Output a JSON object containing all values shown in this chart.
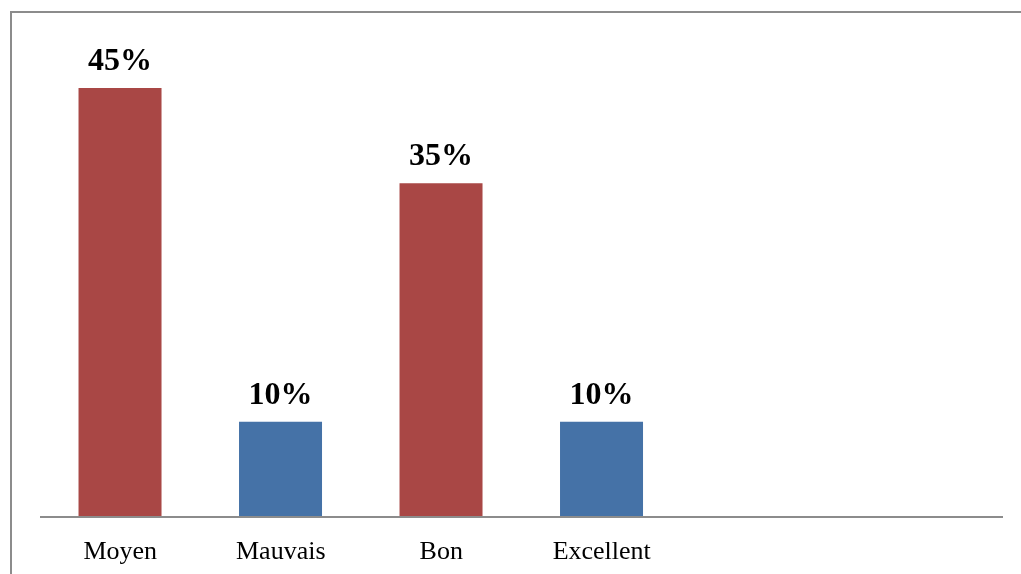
{
  "chart_data": {
    "type": "bar",
    "categories": [
      "Moyen",
      "Mauvais",
      "Bon",
      "Excellent",
      null,
      null
    ],
    "values": [
      45,
      10,
      35,
      10,
      null,
      null
    ],
    "colors": [
      "#a94745",
      "#4572a7",
      "#a94745",
      "#4572a7",
      null,
      null
    ],
    "value_labels": [
      "45%",
      "10%",
      "35%",
      "10%",
      null,
      null
    ],
    "tick_labels": "x"
  }
}
